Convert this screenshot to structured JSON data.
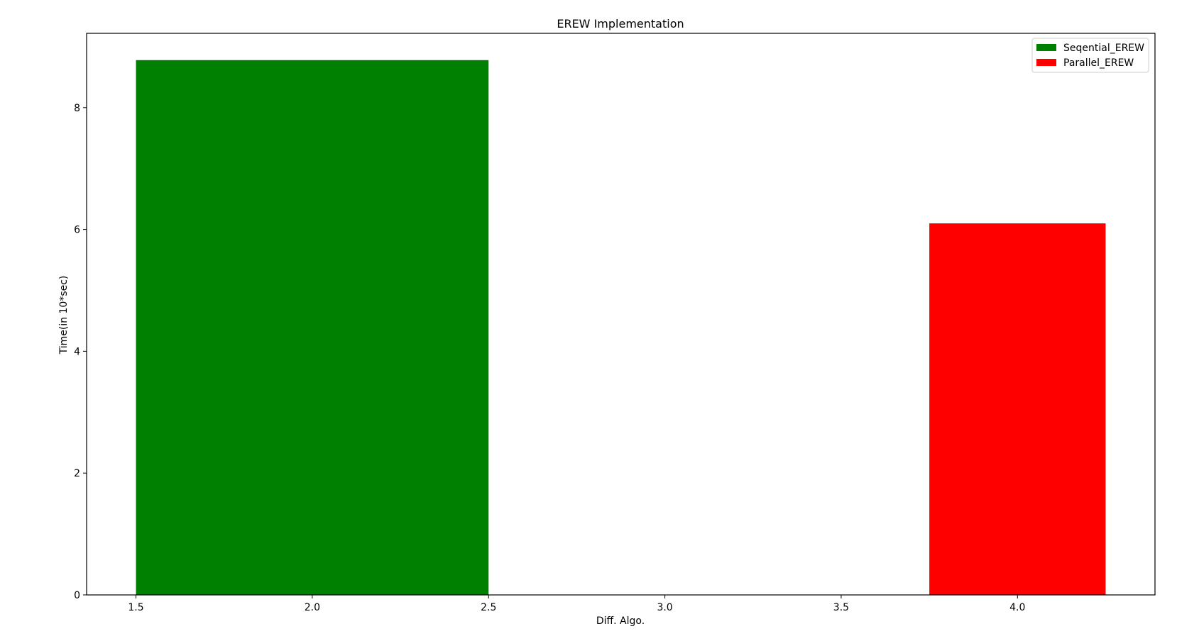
{
  "chart_data": {
    "type": "bar",
    "title": "EREW Implementation",
    "xlabel": "Diff. Algo.",
    "ylabel": "Time(in 10*sec)",
    "xlim": [
      1.36,
      4.39
    ],
    "ylim": [
      0,
      9.22
    ],
    "xticks": [
      1.5,
      2.0,
      2.5,
      3.0,
      3.5,
      4.0
    ],
    "xtick_labels": [
      "1.5",
      "2.0",
      "2.5",
      "3.0",
      "3.5",
      "4.0"
    ],
    "yticks": [
      0,
      2,
      4,
      6,
      8
    ],
    "ytick_labels": [
      "0",
      "2",
      "4",
      "6",
      "8"
    ],
    "grid": false,
    "legend_position": "top-right",
    "series": [
      {
        "name": "Seqential_EREW",
        "color": "#008000",
        "x_start": 1.5,
        "x_end": 2.5,
        "value": 8.78
      },
      {
        "name": "Parallel_EREW",
        "color": "#ff0000",
        "x_start": 3.75,
        "x_end": 4.25,
        "value": 6.1
      }
    ]
  }
}
